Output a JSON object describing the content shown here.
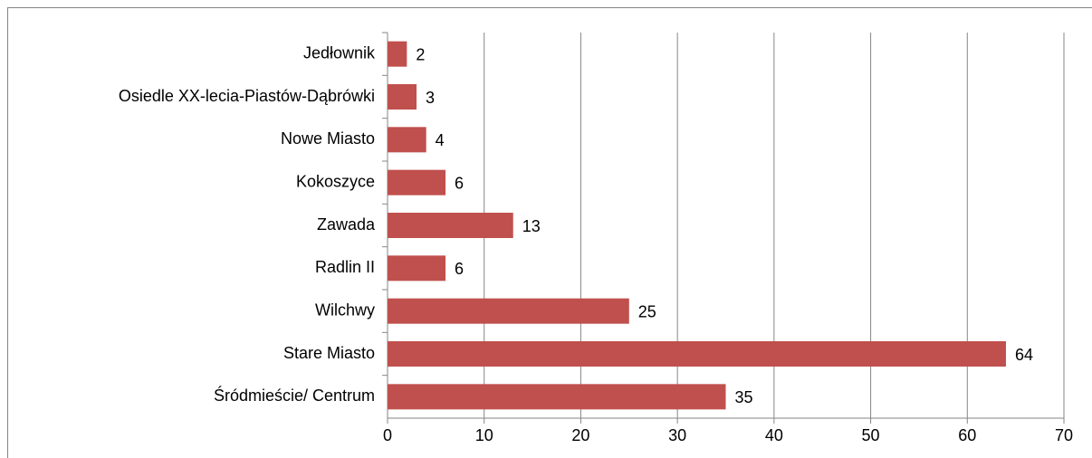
{
  "chart_data": {
    "type": "hbar",
    "categories": [
      "Jedłownik",
      "Osiedle XX-lecia-Piastów-Dąbrówki",
      "Nowe Miasto",
      "Kokoszyce",
      "Zawada",
      "Radlin II",
      "Wilchwy",
      "Stare Miasto",
      "Śródmieście/ Centrum"
    ],
    "values": [
      2,
      3,
      4,
      6,
      13,
      6,
      25,
      64,
      35
    ],
    "color": "#c0504d",
    "xlim": [
      0,
      70
    ],
    "xticks": [
      0,
      10,
      20,
      30,
      40,
      50,
      60,
      70
    ],
    "grid": true
  }
}
